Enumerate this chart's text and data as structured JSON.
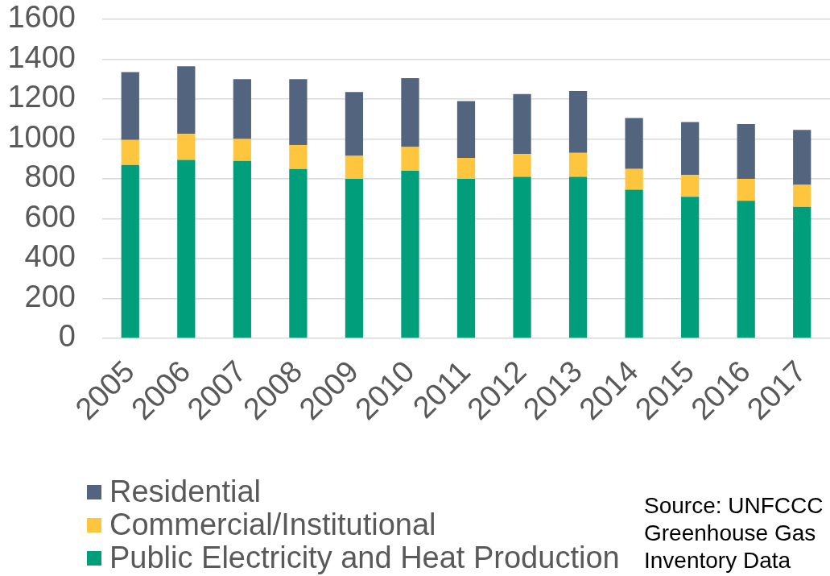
{
  "chart_data": {
    "type": "bar",
    "stacked": true,
    "categories": [
      "2005",
      "2006",
      "2007",
      "2008",
      "2009",
      "2010",
      "2011",
      "2012",
      "2013",
      "2014",
      "2015",
      "2016",
      "2017"
    ],
    "series": [
      {
        "name": "Public Electricity and Heat Production",
        "color": "#009e7b",
        "values": [
          870,
          895,
          890,
          850,
          800,
          840,
          800,
          810,
          810,
          745,
          710,
          690,
          660
        ]
      },
      {
        "name": "Commercial/Institutional",
        "color": "#fec63f",
        "values": [
          125,
          130,
          110,
          120,
          115,
          120,
          105,
          115,
          120,
          105,
          110,
          110,
          110
        ]
      },
      {
        "name": "Residential",
        "color": "#53647e",
        "values": [
          340,
          340,
          300,
          330,
          320,
          345,
          285,
          300,
          310,
          255,
          265,
          275,
          275
        ]
      }
    ],
    "ylim": [
      0,
      1600
    ],
    "yticks": [
      0,
      200,
      400,
      600,
      800,
      1000,
      1200,
      1400,
      1600
    ],
    "grid": "y",
    "legend": "bottom left",
    "annotations": [
      "Source: UNFCCC Greenhouse Gas Inventory Data"
    ]
  }
}
